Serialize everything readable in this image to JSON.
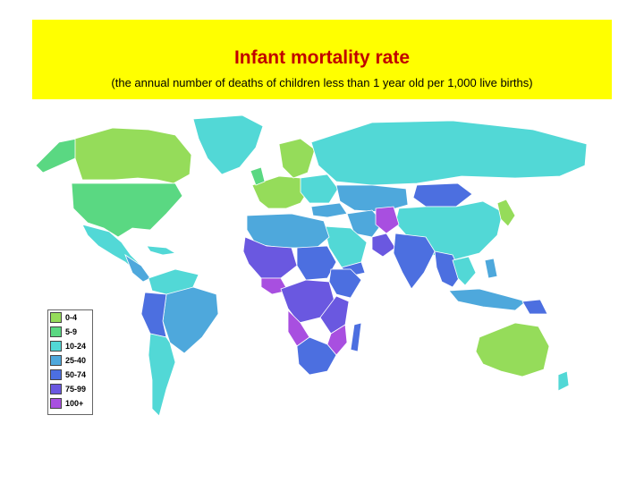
{
  "header": {
    "title": "Infant mortality rate",
    "subtitle": "(the annual number of deaths of children less than 1 year old per 1,000 live births)"
  },
  "colors": {
    "band_background": "#ffff00",
    "title_text": "#c00000",
    "ocean": "#ffffff",
    "border": "#ffffff"
  },
  "legend": {
    "items": [
      {
        "label": "0-4",
        "color": "#95dc5a"
      },
      {
        "label": "5-9",
        "color": "#5ad882"
      },
      {
        "label": "10-24",
        "color": "#52d8d6"
      },
      {
        "label": "25-40",
        "color": "#4ea8dc"
      },
      {
        "label": "50-74",
        "color": "#4c6fe0"
      },
      {
        "label": "75-99",
        "color": "#6a58e0"
      },
      {
        "label": "100+",
        "color": "#a84fe0"
      }
    ]
  }
}
